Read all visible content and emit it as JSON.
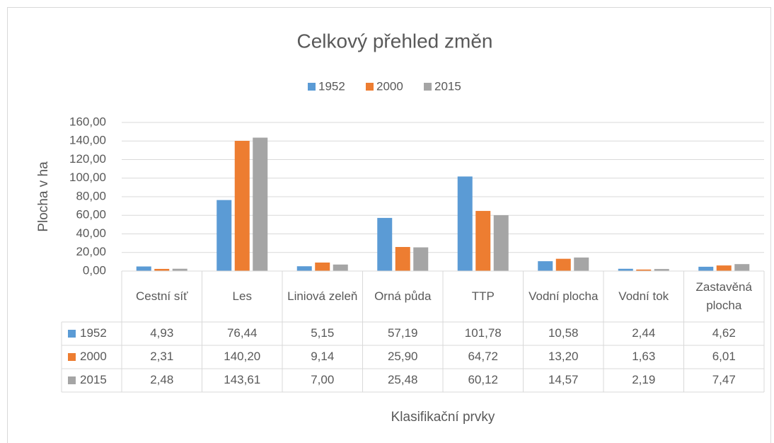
{
  "chart_data": {
    "type": "bar",
    "title": "Celkový přehled změn",
    "x_label": "Klasifikační prvky",
    "y_label": "Plocha v ha",
    "categories": [
      "Cestní síť",
      "Les",
      "Liniová zeleň",
      "Orná půda",
      "TTP",
      "Vodní plocha",
      "Vodní tok",
      "Zastavěná plocha"
    ],
    "series": [
      {
        "name": "1952",
        "color": "#5b9bd5",
        "values": [
          4.93,
          76.44,
          5.15,
          57.19,
          101.78,
          10.58,
          2.44,
          4.62
        ],
        "value_labels": [
          "4,93",
          "76,44",
          "5,15",
          "57,19",
          "101,78",
          "10,58",
          "2,44",
          "4,62"
        ]
      },
      {
        "name": "2000",
        "color": "#ed7d31",
        "values": [
          2.31,
          140.2,
          9.14,
          25.9,
          64.72,
          13.2,
          1.63,
          6.01
        ],
        "value_labels": [
          "2,31",
          "140,20",
          "9,14",
          "25,90",
          "64,72",
          "13,20",
          "1,63",
          "6,01"
        ]
      },
      {
        "name": "2015",
        "color": "#a5a5a5",
        "values": [
          2.48,
          143.61,
          7.0,
          25.48,
          60.12,
          14.57,
          2.19,
          7.47
        ],
        "value_labels": [
          "2,48",
          "143,61",
          "7,00",
          "25,48",
          "60,12",
          "14,57",
          "2,19",
          "7,47"
        ]
      }
    ],
    "ylim": [
      0,
      160
    ],
    "yticks": [
      {
        "value": 0,
        "label": "0,00"
      },
      {
        "value": 20,
        "label": "20,00"
      },
      {
        "value": 40,
        "label": "40,00"
      },
      {
        "value": 60,
        "label": "60,00"
      },
      {
        "value": 80,
        "label": "80,00"
      },
      {
        "value": 100,
        "label": "100,00"
      },
      {
        "value": 120,
        "label": "120,00"
      },
      {
        "value": 140,
        "label": "140,00"
      },
      {
        "value": 160,
        "label": "160,00"
      }
    ],
    "grid": true,
    "legend": "top"
  }
}
